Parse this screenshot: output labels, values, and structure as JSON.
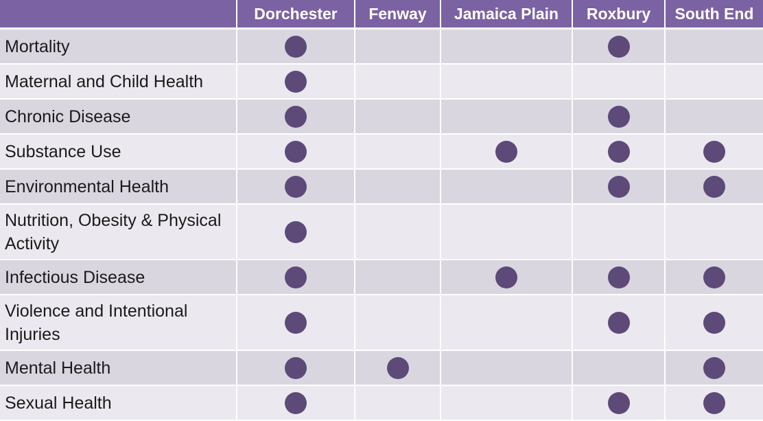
{
  "columns": [
    "Dorchester",
    "Fenway",
    "Jamaica Plain",
    "Roxbury",
    "South End"
  ],
  "rows": [
    {
      "label": "Mortality",
      "marks": [
        true,
        false,
        false,
        true,
        false
      ]
    },
    {
      "label": "Maternal and Child Health",
      "marks": [
        true,
        false,
        false,
        false,
        false
      ]
    },
    {
      "label": "Chronic Disease",
      "marks": [
        true,
        false,
        false,
        true,
        false
      ]
    },
    {
      "label": "Substance Use",
      "marks": [
        true,
        false,
        true,
        true,
        true
      ]
    },
    {
      "label": "Environmental Health",
      "marks": [
        true,
        false,
        false,
        true,
        true
      ]
    },
    {
      "label": "Nutrition, Obesity & Physical Activity",
      "marks": [
        true,
        false,
        false,
        false,
        false
      ]
    },
    {
      "label": "Infectious Disease",
      "marks": [
        true,
        false,
        true,
        true,
        true
      ]
    },
    {
      "label": "Violence and Intentional Injuries",
      "marks": [
        true,
        false,
        false,
        true,
        true
      ]
    },
    {
      "label": "Mental Health",
      "marks": [
        true,
        true,
        false,
        false,
        true
      ]
    },
    {
      "label": "Sexual Health",
      "marks": [
        true,
        false,
        false,
        true,
        true
      ]
    }
  ],
  "colors": {
    "header_bg": "#7b62a3",
    "row_odd_bg": "#d9d6e0",
    "row_even_bg": "#ebe9ef",
    "dot": "#5d4a78"
  }
}
